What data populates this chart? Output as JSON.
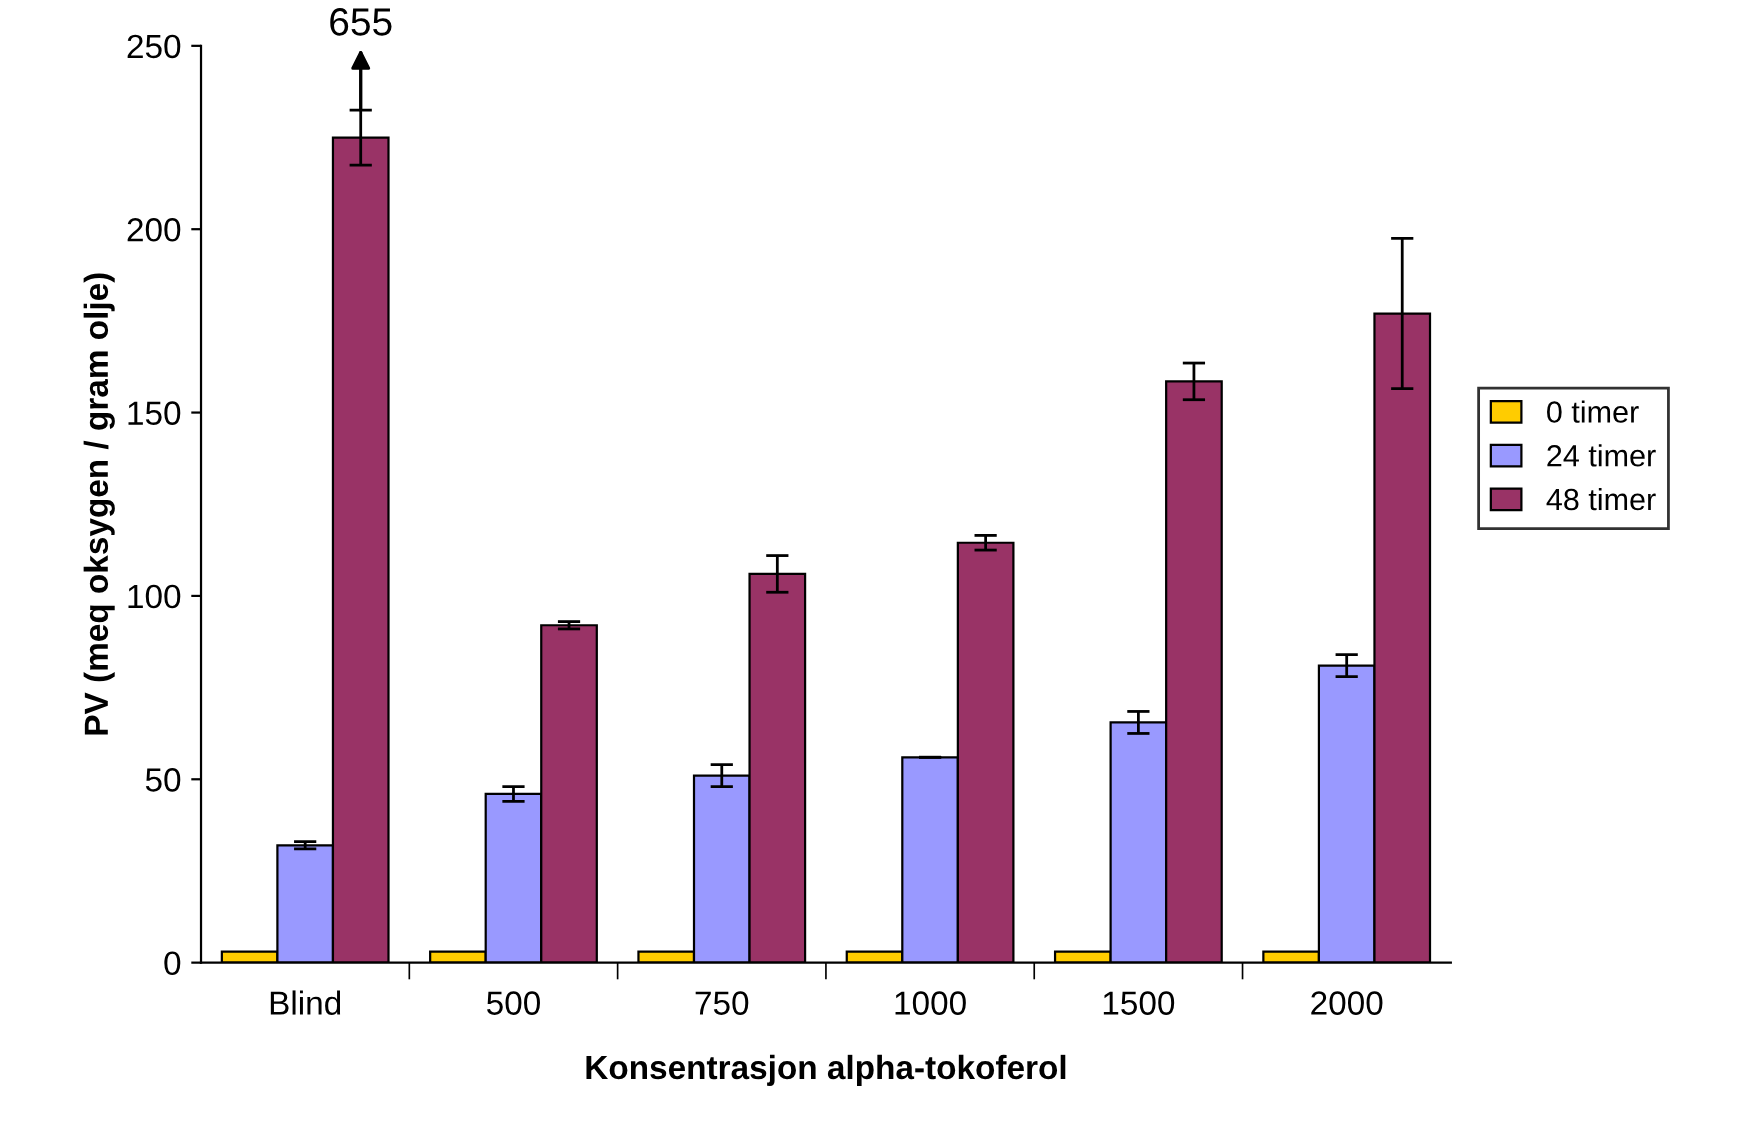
{
  "chart_data": {
    "type": "bar",
    "xlabel": "Konsentrasjon alpha-tokoferol",
    "ylabel": "PV (meq oksygen / gram olje)",
    "categories": [
      "Blind",
      "500",
      "750",
      "1000",
      "1500",
      "2000"
    ],
    "series": [
      {
        "name": "0 timer",
        "color": "#ffcc00",
        "values": [
          3,
          3,
          3,
          3,
          3,
          3
        ]
      },
      {
        "name": "24 timer",
        "color": "#9999ff",
        "values": [
          32,
          46,
          51,
          56,
          65.5,
          81
        ],
        "errors": [
          1,
          2,
          3,
          null,
          3,
          3
        ]
      },
      {
        "name": "48 timer",
        "color": "#993366",
        "values": [
          225,
          92,
          106,
          114.5,
          158.5,
          177
        ],
        "errors": [
          7.5,
          1,
          5,
          2,
          5,
          20.5
        ]
      }
    ],
    "ylim": [
      0,
      250
    ],
    "yticks": [
      0,
      50,
      100,
      150,
      200,
      250
    ],
    "grid": false,
    "legend": "right",
    "annotations": [
      "655"
    ]
  }
}
